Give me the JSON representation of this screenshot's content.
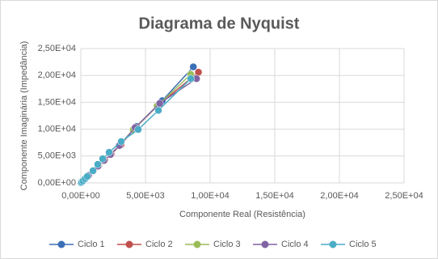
{
  "chart_data": {
    "type": "scatter-line",
    "title": "Diagrama de Nyquist",
    "x_label": "Componente Real (Resistência)",
    "y_label": "Componente Imaginária (Impedância)",
    "xlim": [
      0,
      25000
    ],
    "ylim": [
      0,
      25000
    ],
    "xticks": [
      {
        "value": 0,
        "label": "0,00E+00"
      },
      {
        "value": 5000,
        "label": "5,00E+03"
      },
      {
        "value": 10000,
        "label": "1,00E+04"
      },
      {
        "value": 15000,
        "label": "1,50E+04"
      },
      {
        "value": 20000,
        "label": "2,00E+04"
      },
      {
        "value": 25000,
        "label": "2,50E+04"
      }
    ],
    "yticks": [
      {
        "value": 0,
        "label": "0,00E+00"
      },
      {
        "value": 5000,
        "label": "5,00E+03"
      },
      {
        "value": 10000,
        "label": "1,00E+04"
      },
      {
        "value": 15000,
        "label": "1,50E+04"
      },
      {
        "value": 20000,
        "label": "2,00E+04"
      },
      {
        "value": 25000,
        "label": "2,50E+04"
      }
    ],
    "grid": true,
    "legend": "bottom",
    "series": [
      {
        "name": "Ciclo 1",
        "color": "#3b6fb6",
        "x": [
          30,
          80,
          180,
          350,
          600,
          950,
          1350,
          1800,
          2300,
          3000,
          4300,
          6300,
          8700
        ],
        "values": [
          60,
          180,
          420,
          820,
          1400,
          2200,
          3150,
          4200,
          5300,
          7000,
          10500,
          15300,
          21600
        ]
      },
      {
        "name": "Ciclo 2",
        "color": "#c0504d",
        "x": [
          30,
          85,
          190,
          360,
          620,
          980,
          1380,
          1850,
          2350,
          3100,
          4100,
          6000,
          9100
        ],
        "values": [
          60,
          190,
          430,
          830,
          1420,
          2250,
          3200,
          4250,
          5350,
          7100,
          10000,
          14500,
          20600
        ]
      },
      {
        "name": "Ciclo 3",
        "color": "#9bbb59",
        "x": [
          25,
          75,
          170,
          340,
          590,
          940,
          1320,
          1780,
          2280,
          2950,
          4050,
          5900,
          8500
        ],
        "values": [
          55,
          170,
          400,
          800,
          1380,
          2180,
          3100,
          4150,
          5250,
          6900,
          9900,
          14300,
          20200
        ]
      },
      {
        "name": "Ciclo 4",
        "color": "#8064a2",
        "x": [
          28,
          78,
          175,
          345,
          595,
          945,
          1330,
          1790,
          2290,
          2980,
          4200,
          6100,
          8950
        ],
        "values": [
          58,
          175,
          410,
          810,
          1390,
          2190,
          3120,
          4170,
          5280,
          6950,
          10300,
          14800,
          19400
        ]
      },
      {
        "name": "Ciclo 5",
        "color": "#4bacc6",
        "x": [
          20,
          70,
          160,
          330,
          500,
          940,
          1310,
          1690,
          2190,
          3125,
          4440,
          6000,
          8500
        ],
        "values": [
          45,
          160,
          380,
          780,
          1200,
          2270,
          3460,
          4500,
          5700,
          7700,
          9940,
          13500,
          19400
        ]
      }
    ]
  }
}
